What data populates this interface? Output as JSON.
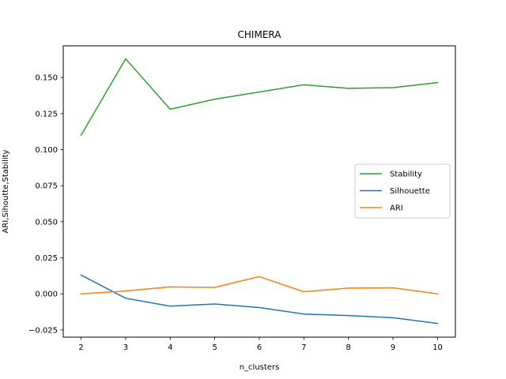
{
  "chart_data": {
    "type": "line",
    "title": "CHIMERA",
    "xlabel": "n_clusters",
    "ylabel": "ARI,Sihoutte,Stability",
    "x": [
      2,
      3,
      4,
      5,
      6,
      7,
      8,
      9,
      10
    ],
    "xlim": [
      1.6,
      10.4
    ],
    "ylim": [
      -0.03,
      0.172
    ],
    "xticks": [
      "2",
      "3",
      "4",
      "5",
      "6",
      "7",
      "8",
      "9",
      "10"
    ],
    "yticks": [
      "−0.025",
      "0.000",
      "0.025",
      "0.050",
      "0.075",
      "0.100",
      "0.125",
      "0.150"
    ],
    "ytick_values": [
      -0.025,
      0.0,
      0.025,
      0.05,
      0.075,
      0.1,
      0.125,
      0.15
    ],
    "grid": false,
    "legend_position": "center-right",
    "series": [
      {
        "name": "Stability",
        "color": "#2ca02c",
        "values": [
          0.11,
          0.163,
          0.128,
          0.135,
          0.14,
          0.145,
          0.1425,
          0.143,
          0.1465
        ]
      },
      {
        "name": "Silhouette",
        "color": "#1f77b4",
        "values": [
          0.013,
          -0.003,
          -0.0085,
          -0.007,
          -0.0095,
          -0.014,
          -0.015,
          -0.0165,
          -0.0205
        ]
      },
      {
        "name": "ARI",
        "color": "#ff7f0e",
        "values": [
          0.0,
          0.002,
          0.0048,
          0.0045,
          0.012,
          0.0015,
          0.004,
          0.0042,
          0.0
        ]
      }
    ]
  }
}
